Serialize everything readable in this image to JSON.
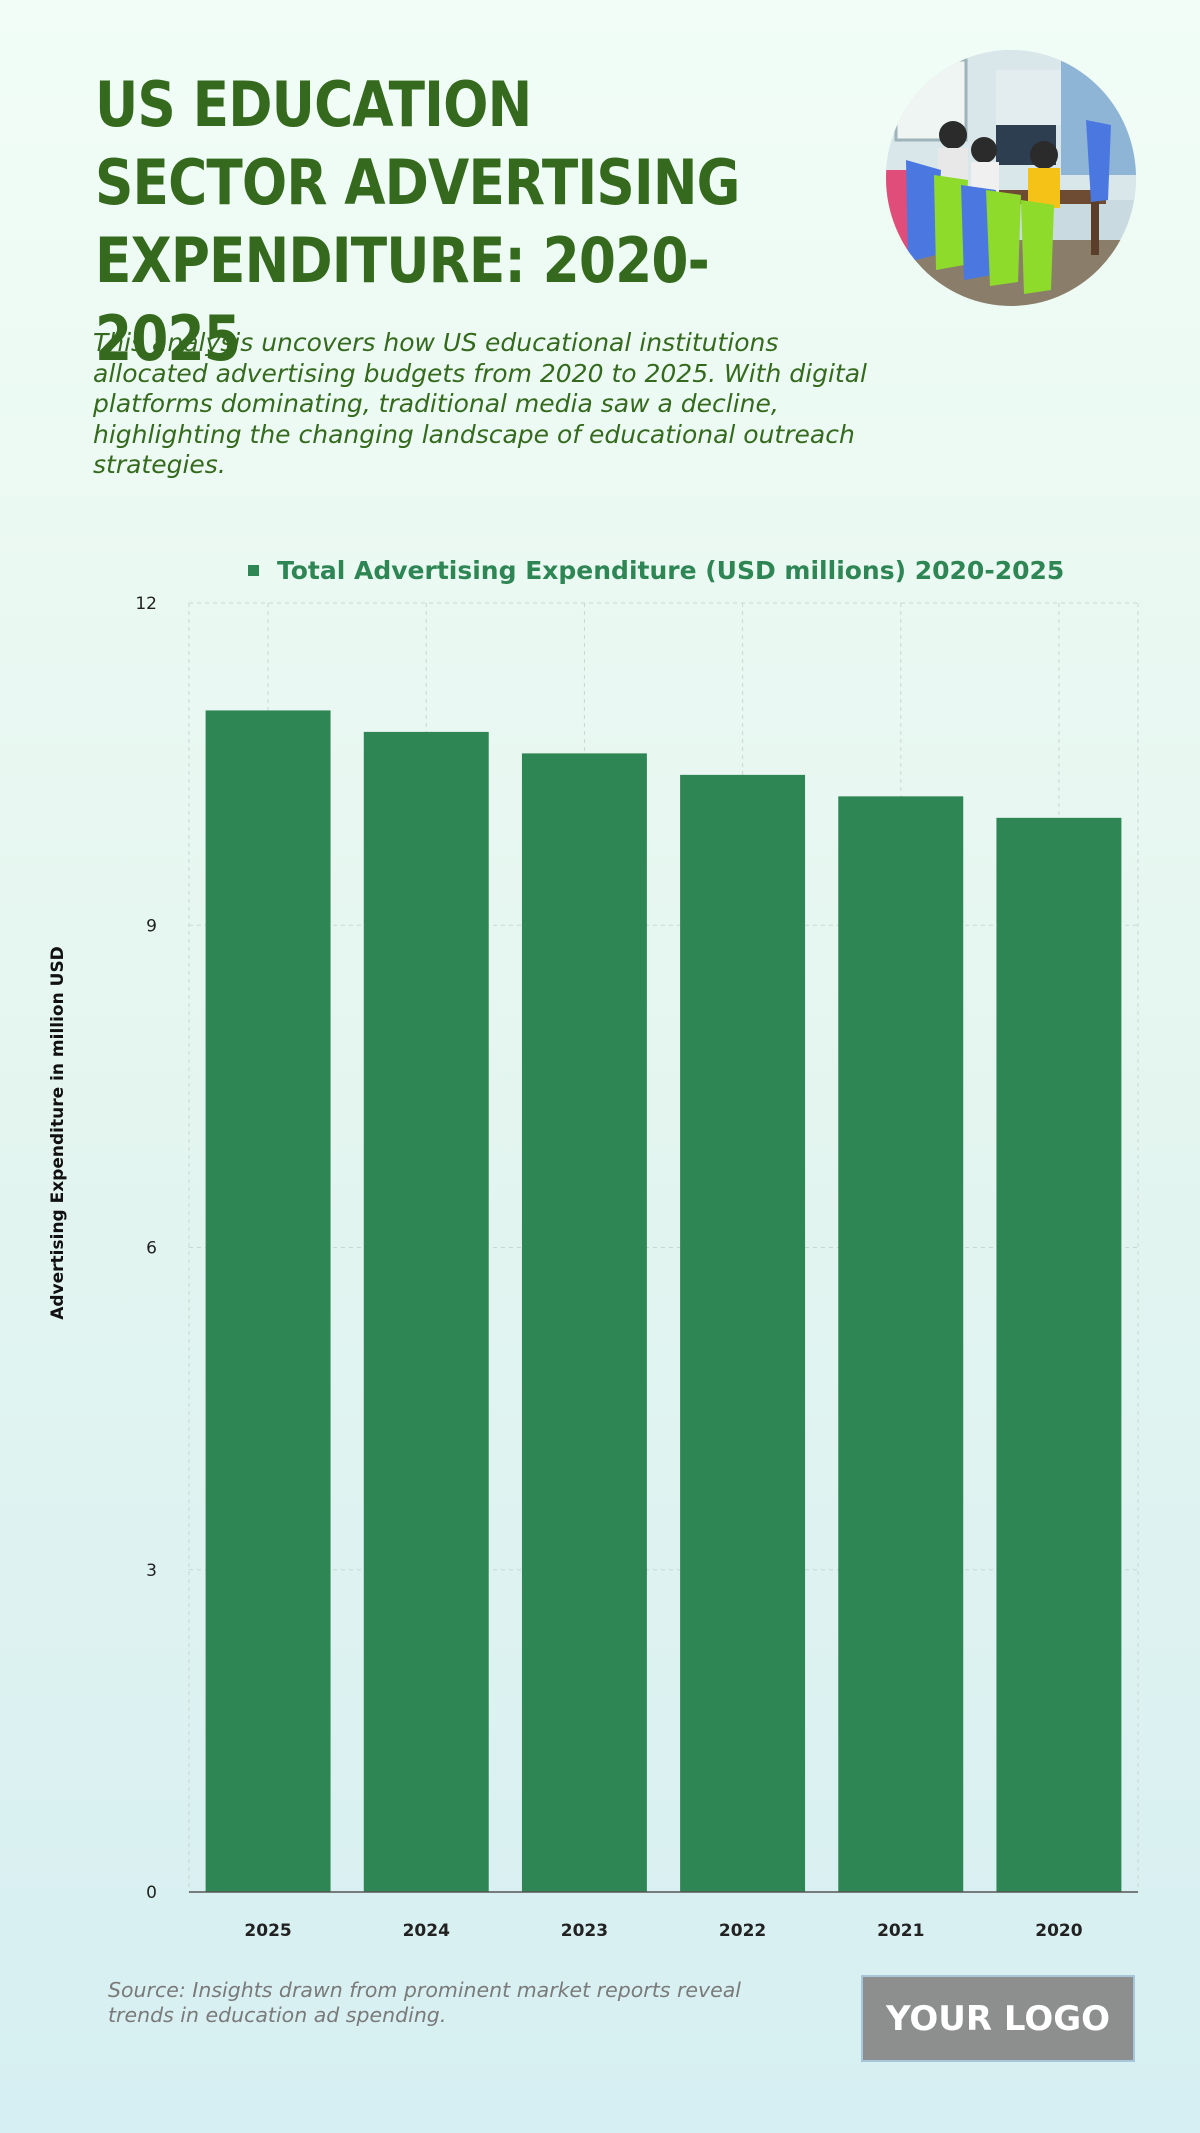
{
  "header": {
    "title": "US EDUCATION SECTOR ADVERTISING EXPENDITURE: 2020-2025",
    "subtitle": "This analysis uncovers how US educational institutions allocated advertising budgets from 2020 to 2025. With digital platforms dominating, traditional media saw a decline, highlighting the changing landscape of educational outreach strategies.",
    "photo_icon": "classroom-photo"
  },
  "chart_data": {
    "type": "bar",
    "categories": [
      "2025",
      "2024",
      "2023",
      "2022",
      "2021",
      "2020"
    ],
    "series": [
      {
        "name": "Total Advertising Expenditure (USD millions) 2020-2025",
        "values": [
          11.0,
          10.8,
          10.6,
          10.4,
          10.2,
          10.0
        ]
      }
    ],
    "title": "",
    "xlabel": "",
    "ylabel": "Advertising Expenditure in million USD",
    "ylim": [
      0,
      12
    ],
    "yticks": [
      0,
      3,
      6,
      9,
      12
    ],
    "grid": true,
    "legend": "top",
    "bar_color": "#2e8654"
  },
  "footer": {
    "source": "Source: Insights drawn from prominent market reports reveal trends in education ad spending.",
    "logo_label": "YOUR LOGO"
  }
}
